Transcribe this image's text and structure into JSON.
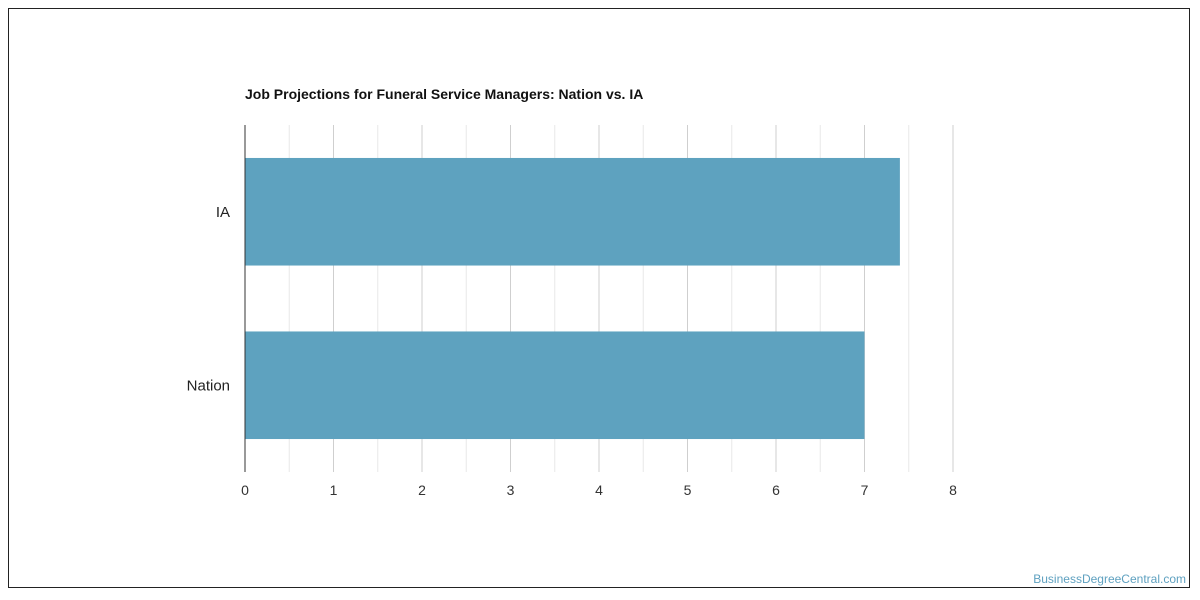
{
  "chart_data": {
    "type": "bar",
    "orientation": "horizontal",
    "title": "Job Projections for Funeral Service Managers: Nation vs. IA",
    "categories": [
      "IA",
      "Nation"
    ],
    "values": [
      7.4,
      7.0
    ],
    "xlim": [
      0,
      8
    ],
    "x_ticks": [
      "0",
      "1",
      "2",
      "3",
      "4",
      "5",
      "6",
      "7",
      "8"
    ],
    "grid": true,
    "bar_color": "#5ea2bf"
  },
  "watermark": "BusinessDegreeCentral.com"
}
